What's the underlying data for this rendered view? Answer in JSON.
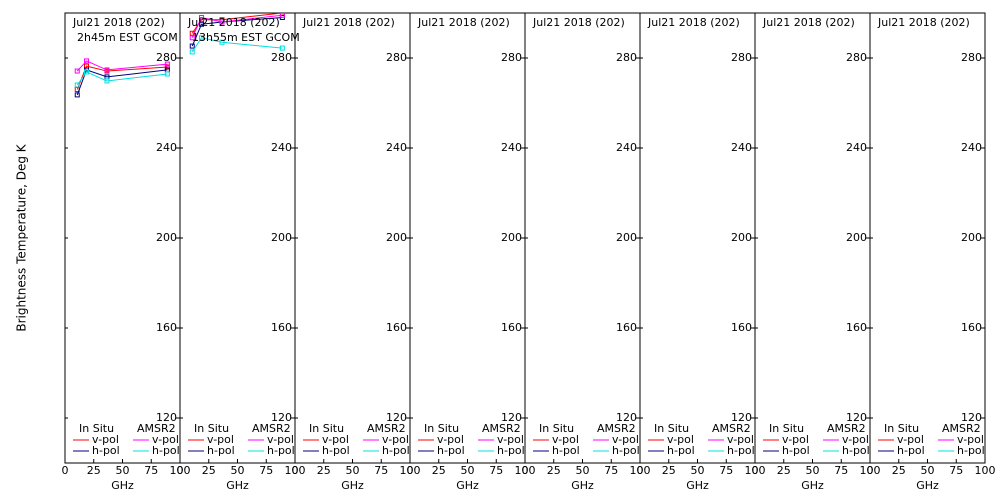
{
  "chart_data": [
    {
      "type": "line",
      "title": "Jul21 2018 (202)",
      "subtitle": "2h45m EST GCOM",
      "ylabel": "Brightness Temperature, Deg K",
      "xlabel": "GHz",
      "x": [
        10.65,
        18.7,
        36.5,
        89.0
      ],
      "xlim": [
        0,
        100
      ],
      "xticks": [
        0,
        25,
        50,
        75,
        100
      ],
      "ylim": [
        100,
        300
      ],
      "yticks": [
        120,
        160,
        200,
        240,
        280
      ],
      "series_groups": [
        {
          "name": "In Situ",
          "series": [
            {
              "name": "v-pol",
              "color": "#ff0000",
              "values": [
                266.0,
                276.4,
                274.2,
                276.0
              ]
            },
            {
              "name": "h-pol",
              "color": "#000080",
              "values": [
                263.6,
                274.7,
                271.6,
                274.7
              ]
            }
          ]
        },
        {
          "name": "AMSR2",
          "series": [
            {
              "name": "v-pol",
              "color": "#ff00ff",
              "values": [
                274.2,
                278.7,
                274.7,
                277.3
              ]
            },
            {
              "name": "h-pol",
              "color": "#00e0e0",
              "values": [
                268.0,
                273.8,
                269.8,
                272.9
              ]
            }
          ]
        }
      ]
    },
    {
      "type": "line",
      "title": "Jul21 2018 (202)",
      "subtitle": "13h55m EST GCOM",
      "xlabel": "GHz",
      "x": [
        10.65,
        18.7,
        36.5,
        89.0
      ],
      "xlim": [
        0,
        100
      ],
      "xticks": [
        0,
        25,
        50,
        75,
        100
      ],
      "ylim": [
        100,
        300
      ],
      "yticks": [
        120,
        160,
        200,
        240,
        280
      ],
      "series_groups": [
        {
          "name": "In Situ",
          "series": [
            {
              "name": "v-pol",
              "color": "#ff0000",
              "values": [
                291.0,
                297.0,
                297.0,
                300.0
              ]
            },
            {
              "name": "h-pol",
              "color": "#000080",
              "values": [
                285.3,
                295.0,
                296.0,
                298.0
              ]
            }
          ]
        },
        {
          "name": "AMSR2",
          "series": [
            {
              "name": "v-pol",
              "color": "#ff00ff",
              "values": [
                289.0,
                298.0,
                296.0,
                299.0
              ]
            },
            {
              "name": "h-pol",
              "color": "#00e0e0",
              "values": [
                282.7,
                289.0,
                287.0,
                284.4
              ]
            }
          ]
        }
      ]
    },
    {
      "type": "line",
      "title": "Jul21 2018 (202)",
      "xlabel": "GHz",
      "x": [],
      "xlim": [
        0,
        100
      ],
      "xticks": [
        0,
        25,
        50,
        75,
        100
      ],
      "ylim": [
        100,
        300
      ],
      "yticks": [
        120,
        160,
        200,
        240,
        280
      ],
      "series_groups": [
        {
          "name": "In Situ",
          "series": [
            {
              "name": "v-pol",
              "color": "#ff0000",
              "values": []
            },
            {
              "name": "h-pol",
              "color": "#000080",
              "values": []
            }
          ]
        },
        {
          "name": "AMSR2",
          "series": [
            {
              "name": "v-pol",
              "color": "#ff00ff",
              "values": []
            },
            {
              "name": "h-pol",
              "color": "#00e0e0",
              "values": []
            }
          ]
        }
      ]
    },
    {
      "type": "line",
      "title": "Jul21 2018 (202)",
      "xlabel": "GHz",
      "x": [],
      "xlim": [
        0,
        100
      ],
      "xticks": [
        0,
        25,
        50,
        75,
        100
      ],
      "ylim": [
        100,
        300
      ],
      "yticks": [
        120,
        160,
        200,
        240,
        280
      ],
      "series_groups": [
        {
          "name": "In Situ",
          "series": [
            {
              "name": "v-pol",
              "color": "#ff0000",
              "values": []
            },
            {
              "name": "h-pol",
              "color": "#000080",
              "values": []
            }
          ]
        },
        {
          "name": "AMSR2",
          "series": [
            {
              "name": "v-pol",
              "color": "#ff00ff",
              "values": []
            },
            {
              "name": "h-pol",
              "color": "#00e0e0",
              "values": []
            }
          ]
        }
      ]
    },
    {
      "type": "line",
      "title": "Jul21 2018 (202)",
      "xlabel": "GHz",
      "x": [],
      "xlim": [
        0,
        100
      ],
      "xticks": [
        0,
        25,
        50,
        75,
        100
      ],
      "ylim": [
        100,
        300
      ],
      "yticks": [
        120,
        160,
        200,
        240,
        280
      ],
      "series_groups": [
        {
          "name": "In Situ",
          "series": [
            {
              "name": "v-pol",
              "color": "#ff0000",
              "values": []
            },
            {
              "name": "h-pol",
              "color": "#000080",
              "values": []
            }
          ]
        },
        {
          "name": "AMSR2",
          "series": [
            {
              "name": "v-pol",
              "color": "#ff00ff",
              "values": []
            },
            {
              "name": "h-pol",
              "color": "#00e0e0",
              "values": []
            }
          ]
        }
      ]
    },
    {
      "type": "line",
      "title": "Jul21 2018 (202)",
      "xlabel": "GHz",
      "x": [],
      "xlim": [
        0,
        100
      ],
      "xticks": [
        0,
        25,
        50,
        75,
        100
      ],
      "ylim": [
        100,
        300
      ],
      "yticks": [
        120,
        160,
        200,
        240,
        280
      ],
      "series_groups": [
        {
          "name": "In Situ",
          "series": [
            {
              "name": "v-pol",
              "color": "#ff0000",
              "values": []
            },
            {
              "name": "h-pol",
              "color": "#000080",
              "values": []
            }
          ]
        },
        {
          "name": "AMSR2",
          "series": [
            {
              "name": "v-pol",
              "color": "#ff00ff",
              "values": []
            },
            {
              "name": "h-pol",
              "color": "#00e0e0",
              "values": []
            }
          ]
        }
      ]
    },
    {
      "type": "line",
      "title": "Jul21 2018 (202)",
      "xlabel": "GHz",
      "x": [],
      "xlim": [
        0,
        100
      ],
      "xticks": [
        0,
        25,
        50,
        75,
        100
      ],
      "ylim": [
        100,
        300
      ],
      "yticks": [
        120,
        160,
        200,
        240,
        280
      ],
      "series_groups": [
        {
          "name": "In Situ",
          "series": [
            {
              "name": "v-pol",
              "color": "#ff0000",
              "values": []
            },
            {
              "name": "h-pol",
              "color": "#000080",
              "values": []
            }
          ]
        },
        {
          "name": "AMSR2",
          "series": [
            {
              "name": "v-pol",
              "color": "#ff00ff",
              "values": []
            },
            {
              "name": "h-pol",
              "color": "#00e0e0",
              "values": []
            }
          ]
        }
      ]
    },
    {
      "type": "line",
      "title": "Jul21 2018 (202)",
      "xlabel": "GHz",
      "x": [],
      "xlim": [
        0,
        100
      ],
      "xticks": [
        0,
        25,
        50,
        75,
        100
      ],
      "ylim": [
        100,
        300
      ],
      "yticks": [
        120,
        160,
        200,
        240,
        280
      ],
      "series_groups": [
        {
          "name": "In Situ",
          "series": [
            {
              "name": "v-pol",
              "color": "#ff0000",
              "values": []
            },
            {
              "name": "h-pol",
              "color": "#000080",
              "values": []
            }
          ]
        },
        {
          "name": "AMSR2",
          "series": [
            {
              "name": "v-pol",
              "color": "#ff00ff",
              "values": []
            },
            {
              "name": "h-pol",
              "color": "#00e0e0",
              "values": []
            }
          ]
        }
      ]
    }
  ]
}
